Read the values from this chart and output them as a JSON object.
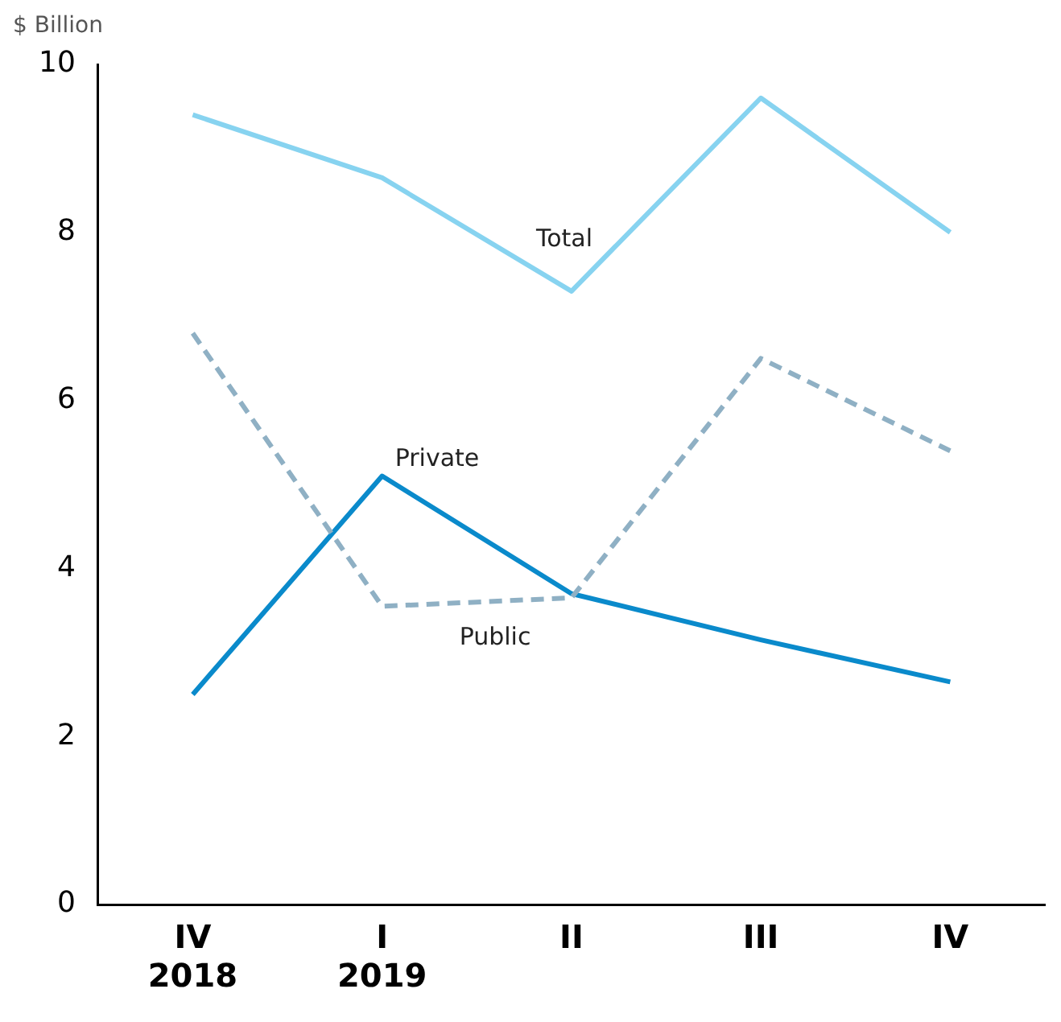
{
  "chart_data": {
    "type": "line",
    "ylabel": "$ Billion",
    "categories": [
      "IV\n2018",
      "I\n2019",
      "II",
      "III",
      "IV"
    ],
    "series": [
      {
        "name": "Total",
        "color": "#87d3f0",
        "values": [
          9.4,
          8.65,
          7.3,
          9.6,
          8.0
        ]
      },
      {
        "name": "Public",
        "color": "#8fb0c4",
        "line_style": "dashed",
        "values": [
          6.8,
          3.55,
          3.65,
          6.5,
          5.4
        ]
      },
      {
        "name": "Private",
        "color": "#0a8acb",
        "values": [
          2.5,
          5.1,
          3.7,
          3.15,
          2.65
        ]
      }
    ],
    "ylim": [
      0,
      10
    ],
    "yticks": [
      0,
      2,
      4,
      6,
      8,
      10
    ],
    "grid": false,
    "legend": false,
    "marker": "none"
  }
}
